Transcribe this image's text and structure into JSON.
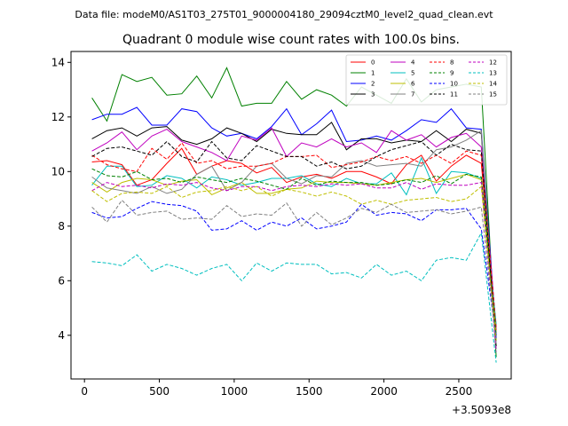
{
  "figure": {
    "suptitle": "Data file: modeM0/AS1T03_275T01_9000004180_29094cztM0_level2_quad_clean.evt",
    "offset_label": "+3.5093e8"
  },
  "chart_data": {
    "type": "line",
    "title": "Quadrant 0 module wise count rates with 100.0s bins.",
    "xlabel": "",
    "ylabel": "",
    "xlim": [
      -90,
      2850
    ],
    "ylim": [
      2.4,
      14.4
    ],
    "xticks": [
      0,
      500,
      1000,
      1500,
      2000,
      2500
    ],
    "xtick_labels": [
      "0",
      "500",
      "1000",
      "1500",
      "2000",
      "2500"
    ],
    "yticks": [
      4,
      6,
      8,
      10,
      12,
      14
    ],
    "ytick_labels": [
      "4",
      "6",
      "8",
      "10",
      "12",
      "14"
    ],
    "legend_position": "top-right",
    "x": [
      50,
      150,
      250,
      350,
      450,
      550,
      650,
      750,
      850,
      950,
      1050,
      1150,
      1250,
      1350,
      1450,
      1550,
      1650,
      1750,
      1850,
      1950,
      2050,
      2150,
      2250,
      2350,
      2450,
      2550,
      2650,
      2750
    ],
    "series": [
      {
        "name": "0",
        "color": "#ff0000",
        "dash": "solid",
        "values": [
          10.35,
          10.4,
          10.25,
          9.5,
          9.7,
          10.3,
          10.85,
          9.9,
          10.2,
          10.4,
          10.3,
          9.95,
          10.15,
          9.6,
          9.8,
          9.9,
          9.75,
          10.0,
          10.0,
          9.8,
          9.55,
          10.25,
          10.6,
          9.65,
          10.2,
          10.6,
          10.3,
          4.3
        ]
      },
      {
        "name": "1",
        "color": "#008000",
        "dash": "solid",
        "values": [
          12.7,
          11.85,
          13.55,
          13.3,
          13.45,
          12.8,
          12.85,
          13.5,
          12.7,
          13.8,
          12.4,
          12.5,
          12.5,
          13.3,
          12.65,
          13.0,
          12.8,
          12.4,
          13.1,
          12.8,
          12.5,
          13.4,
          12.55,
          13.0,
          13.1,
          13.2,
          13.1,
          3.2
        ]
      },
      {
        "name": "2",
        "color": "#0000ff",
        "dash": "solid",
        "values": [
          11.9,
          12.1,
          12.1,
          12.35,
          11.7,
          11.7,
          12.3,
          12.2,
          11.6,
          11.3,
          11.4,
          11.2,
          11.65,
          12.3,
          11.35,
          11.75,
          12.25,
          11.1,
          11.15,
          11.3,
          11.15,
          11.5,
          11.9,
          11.8,
          12.3,
          11.6,
          11.55,
          4.0
        ]
      },
      {
        "name": "3",
        "color": "#000000",
        "dash": "solid",
        "values": [
          11.2,
          11.5,
          11.6,
          11.3,
          11.6,
          11.65,
          11.15,
          11.0,
          11.2,
          11.6,
          11.4,
          11.1,
          11.55,
          11.4,
          11.35,
          11.35,
          11.8,
          10.8,
          11.2,
          11.2,
          11.05,
          11.15,
          11.1,
          11.5,
          11.1,
          11.55,
          11.4,
          3.8
        ]
      },
      {
        "name": "4",
        "color": "#bf00bf",
        "dash": "solid",
        "values": [
          10.75,
          11.05,
          11.45,
          10.8,
          11.3,
          11.55,
          11.1,
          10.9,
          10.7,
          10.4,
          11.3,
          11.15,
          11.6,
          10.55,
          11.05,
          10.9,
          11.2,
          10.9,
          11.05,
          10.7,
          11.5,
          11.15,
          11.35,
          10.9,
          11.25,
          11.4,
          10.9,
          4.2
        ]
      },
      {
        "name": "5",
        "color": "#00bfbf",
        "dash": "solid",
        "values": [
          9.5,
          10.2,
          10.2,
          9.45,
          9.5,
          9.85,
          9.75,
          9.4,
          9.8,
          9.7,
          9.5,
          9.6,
          9.75,
          9.75,
          9.85,
          9.55,
          9.45,
          9.75,
          9.55,
          9.55,
          9.95,
          9.15,
          10.5,
          9.2,
          10.0,
          9.95,
          9.75,
          4.4
        ]
      },
      {
        "name": "6",
        "color": "#bfbf00",
        "dash": "solid",
        "values": [
          9.6,
          9.25,
          9.6,
          9.75,
          9.7,
          9.5,
          9.65,
          9.7,
          9.15,
          9.4,
          9.6,
          9.2,
          9.2,
          9.35,
          9.4,
          9.65,
          9.6,
          9.6,
          9.55,
          9.5,
          9.6,
          9.7,
          9.75,
          9.6,
          9.75,
          9.9,
          9.7,
          4.1
        ]
      },
      {
        "name": "7",
        "color": "#808080",
        "dash": "solid",
        "values": [
          9.8,
          9.4,
          9.3,
          9.2,
          9.45,
          9.2,
          9.35,
          9.9,
          10.2,
          9.3,
          9.6,
          10.2,
          10.3,
          9.75,
          9.55,
          9.85,
          9.8,
          10.3,
          10.4,
          10.2,
          10.25,
          10.3,
          10.2,
          10.8,
          10.9,
          11.15,
          11.5,
          3.5
        ]
      },
      {
        "name": "8",
        "color": "#ff0000",
        "dash": "dashed",
        "values": [
          10.6,
          10.25,
          10.1,
          10.0,
          10.85,
          10.45,
          11.05,
          10.3,
          10.4,
          10.1,
          10.2,
          10.2,
          10.3,
          10.55,
          10.55,
          10.6,
          10.15,
          10.25,
          10.35,
          10.55,
          10.4,
          10.55,
          10.3,
          10.6,
          10.3,
          10.75,
          10.6,
          4.2
        ]
      },
      {
        "name": "9",
        "color": "#008000",
        "dash": "dashed",
        "values": [
          10.1,
          9.85,
          9.8,
          10.0,
          9.7,
          9.75,
          9.6,
          9.8,
          9.7,
          9.6,
          9.75,
          9.65,
          9.5,
          9.35,
          9.75,
          9.5,
          9.65,
          9.6,
          9.6,
          9.5,
          9.55,
          9.7,
          9.6,
          9.85,
          9.55,
          9.9,
          9.8,
          4.0
        ]
      },
      {
        "name": "10",
        "color": "#0000ff",
        "dash": "dashed",
        "values": [
          8.5,
          8.3,
          8.35,
          8.65,
          8.9,
          8.8,
          8.75,
          8.55,
          7.85,
          7.9,
          8.2,
          7.85,
          8.15,
          8.0,
          8.3,
          7.9,
          8.0,
          8.15,
          8.8,
          8.4,
          8.5,
          8.45,
          8.2,
          8.6,
          8.6,
          8.65,
          7.9,
          3.9
        ]
      },
      {
        "name": "11",
        "color": "#000000",
        "dash": "dashed",
        "values": [
          10.55,
          10.85,
          10.9,
          10.75,
          10.6,
          11.1,
          10.55,
          10.35,
          11.1,
          10.5,
          10.4,
          10.95,
          10.75,
          10.55,
          10.55,
          10.2,
          10.35,
          10.1,
          10.2,
          10.55,
          10.8,
          10.95,
          11.1,
          10.6,
          11.0,
          10.8,
          10.75,
          3.6
        ]
      },
      {
        "name": "12",
        "color": "#bf00bf",
        "dash": "dashed",
        "values": [
          9.3,
          9.6,
          9.45,
          9.5,
          9.4,
          9.55,
          9.5,
          9.6,
          9.4,
          9.3,
          9.45,
          9.45,
          9.3,
          9.45,
          9.5,
          9.45,
          9.55,
          9.5,
          9.55,
          9.4,
          9.4,
          9.6,
          9.35,
          9.55,
          9.5,
          9.5,
          9.6,
          3.4
        ]
      },
      {
        "name": "13",
        "color": "#00bfbf",
        "dash": "dashed",
        "values": [
          6.7,
          6.65,
          6.55,
          6.95,
          6.35,
          6.6,
          6.45,
          6.2,
          6.45,
          6.6,
          6.0,
          6.65,
          6.35,
          6.65,
          6.6,
          6.6,
          6.25,
          6.3,
          6.1,
          6.6,
          6.2,
          6.35,
          6.0,
          6.75,
          6.85,
          6.75,
          7.75,
          3.0
        ]
      },
      {
        "name": "14",
        "color": "#bfbf00",
        "dash": "dashed",
        "values": [
          9.3,
          8.9,
          9.2,
          9.25,
          9.2,
          9.45,
          9.05,
          9.25,
          9.3,
          9.45,
          9.3,
          9.45,
          9.1,
          9.35,
          9.25,
          9.1,
          9.25,
          9.1,
          8.8,
          8.95,
          8.8,
          8.95,
          9.0,
          9.05,
          8.9,
          9.0,
          9.45,
          3.8
        ]
      },
      {
        "name": "15",
        "color": "#808080",
        "dash": "dashed",
        "values": [
          8.7,
          8.15,
          8.95,
          8.4,
          8.5,
          8.55,
          8.25,
          8.3,
          8.25,
          8.75,
          8.35,
          8.45,
          8.4,
          8.85,
          8.0,
          8.5,
          8.05,
          8.3,
          8.65,
          8.5,
          8.8,
          8.5,
          8.55,
          8.6,
          8.45,
          8.55,
          8.7,
          3.7
        ]
      }
    ]
  }
}
